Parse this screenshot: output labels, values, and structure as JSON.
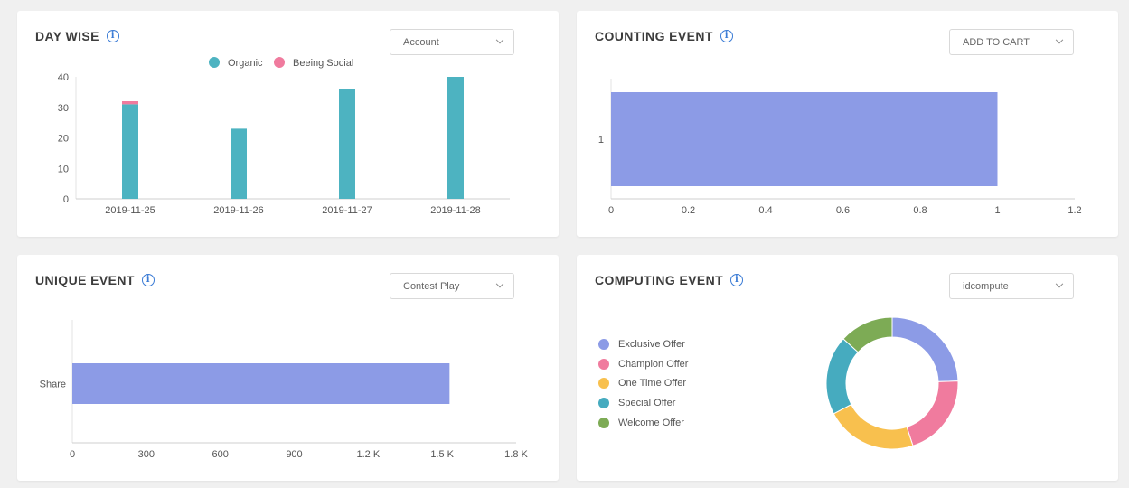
{
  "day_wise": {
    "title": "DAY WISE",
    "dropdown_value": "Account",
    "legend": [
      {
        "label": "Organic",
        "color": "#4db3c1"
      },
      {
        "label": "Beeing Social",
        "color": "#f07b9e"
      }
    ]
  },
  "counting_event": {
    "title": "COUNTING EVENT",
    "dropdown_value": "ADD TO CART"
  },
  "unique_event": {
    "title": "UNIQUE EVENT",
    "dropdown_value": "Contest Play"
  },
  "computing_event": {
    "title": "COMPUTING EVENT",
    "dropdown_value": "idcompute",
    "legend": [
      {
        "label": "Exclusive Offer",
        "color": "#8c9be6"
      },
      {
        "label": "Champion Offer",
        "color": "#f07b9e"
      },
      {
        "label": "One Time Offer",
        "color": "#f8c04e"
      },
      {
        "label": "Special Offer",
        "color": "#46abbf"
      },
      {
        "label": "Welcome Offer",
        "color": "#7dab55"
      }
    ]
  },
  "chart_data": [
    {
      "type": "bar",
      "stacked": true,
      "categories": [
        "2019-11-25",
        "2019-11-26",
        "2019-11-27",
        "2019-11-28"
      ],
      "series": [
        {
          "name": "Organic",
          "values": [
            31,
            23,
            36,
            40
          ],
          "color": "#4db3c1"
        },
        {
          "name": "Beeing Social",
          "values": [
            1,
            0,
            0,
            0
          ],
          "color": "#f07b9e"
        }
      ],
      "ylim": [
        0,
        40
      ],
      "yticks": [
        "0",
        "10",
        "20",
        "30",
        "40"
      ],
      "legend_position": "top"
    },
    {
      "type": "bar",
      "orientation": "horizontal",
      "categories": [
        "1"
      ],
      "values": [
        1
      ],
      "xlim": [
        0,
        1.2
      ],
      "xticks": [
        "0",
        "0.2",
        "0.4",
        "0.6",
        "0.8",
        "1",
        "1.2"
      ],
      "color": "#8c9be6"
    },
    {
      "type": "bar",
      "orientation": "horizontal",
      "categories": [
        "Share"
      ],
      "values": [
        1530
      ],
      "xlim": [
        0,
        1800
      ],
      "xticks": [
        "0",
        "300",
        "600",
        "900",
        "1.2 K",
        "1.5 K",
        "1.8 K"
      ],
      "color": "#8c9be6"
    },
    {
      "type": "pie",
      "donut": true,
      "labels": [
        "Exclusive Offer",
        "Champion Offer",
        "One Time Offer",
        "Special Offer",
        "Welcome Offer"
      ],
      "values": [
        24,
        20,
        22,
        19,
        13
      ],
      "colors": [
        "#8c9be6",
        "#f07b9e",
        "#f8c04e",
        "#46abbf",
        "#7dab55"
      ],
      "legend_position": "left"
    }
  ]
}
